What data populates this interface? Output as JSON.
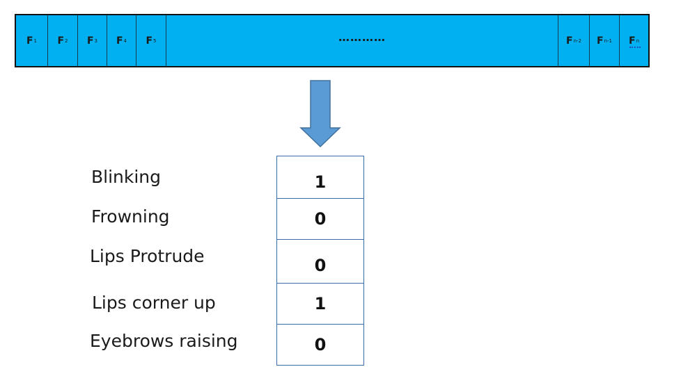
{
  "frames": [
    {
      "base": "F",
      "sub": "1"
    },
    {
      "base": "F",
      "sub": "2"
    },
    {
      "base": "F",
      "sub": "3"
    },
    {
      "base": "F",
      "sub": "4"
    },
    {
      "base": "F",
      "sub": "5"
    },
    {
      "base": "…………",
      "sub": ""
    },
    {
      "base": "F",
      "sub": "n-2"
    },
    {
      "base": "F",
      "sub": "n-1"
    },
    {
      "base": "F",
      "sub": "n"
    }
  ],
  "features": [
    {
      "label": "Blinking",
      "value": "1"
    },
    {
      "label": "Frowning",
      "value": "0"
    },
    {
      "label": "Lips Protrude",
      "value": "0"
    },
    {
      "label": "Lips corner up",
      "value": "1"
    },
    {
      "label": "Eyebrows raising",
      "value": "0"
    }
  ],
  "colors": {
    "strip_fill": "#00b0f0",
    "arrow_fill": "#5b9bd5",
    "box_border": "#3a6aa8"
  }
}
